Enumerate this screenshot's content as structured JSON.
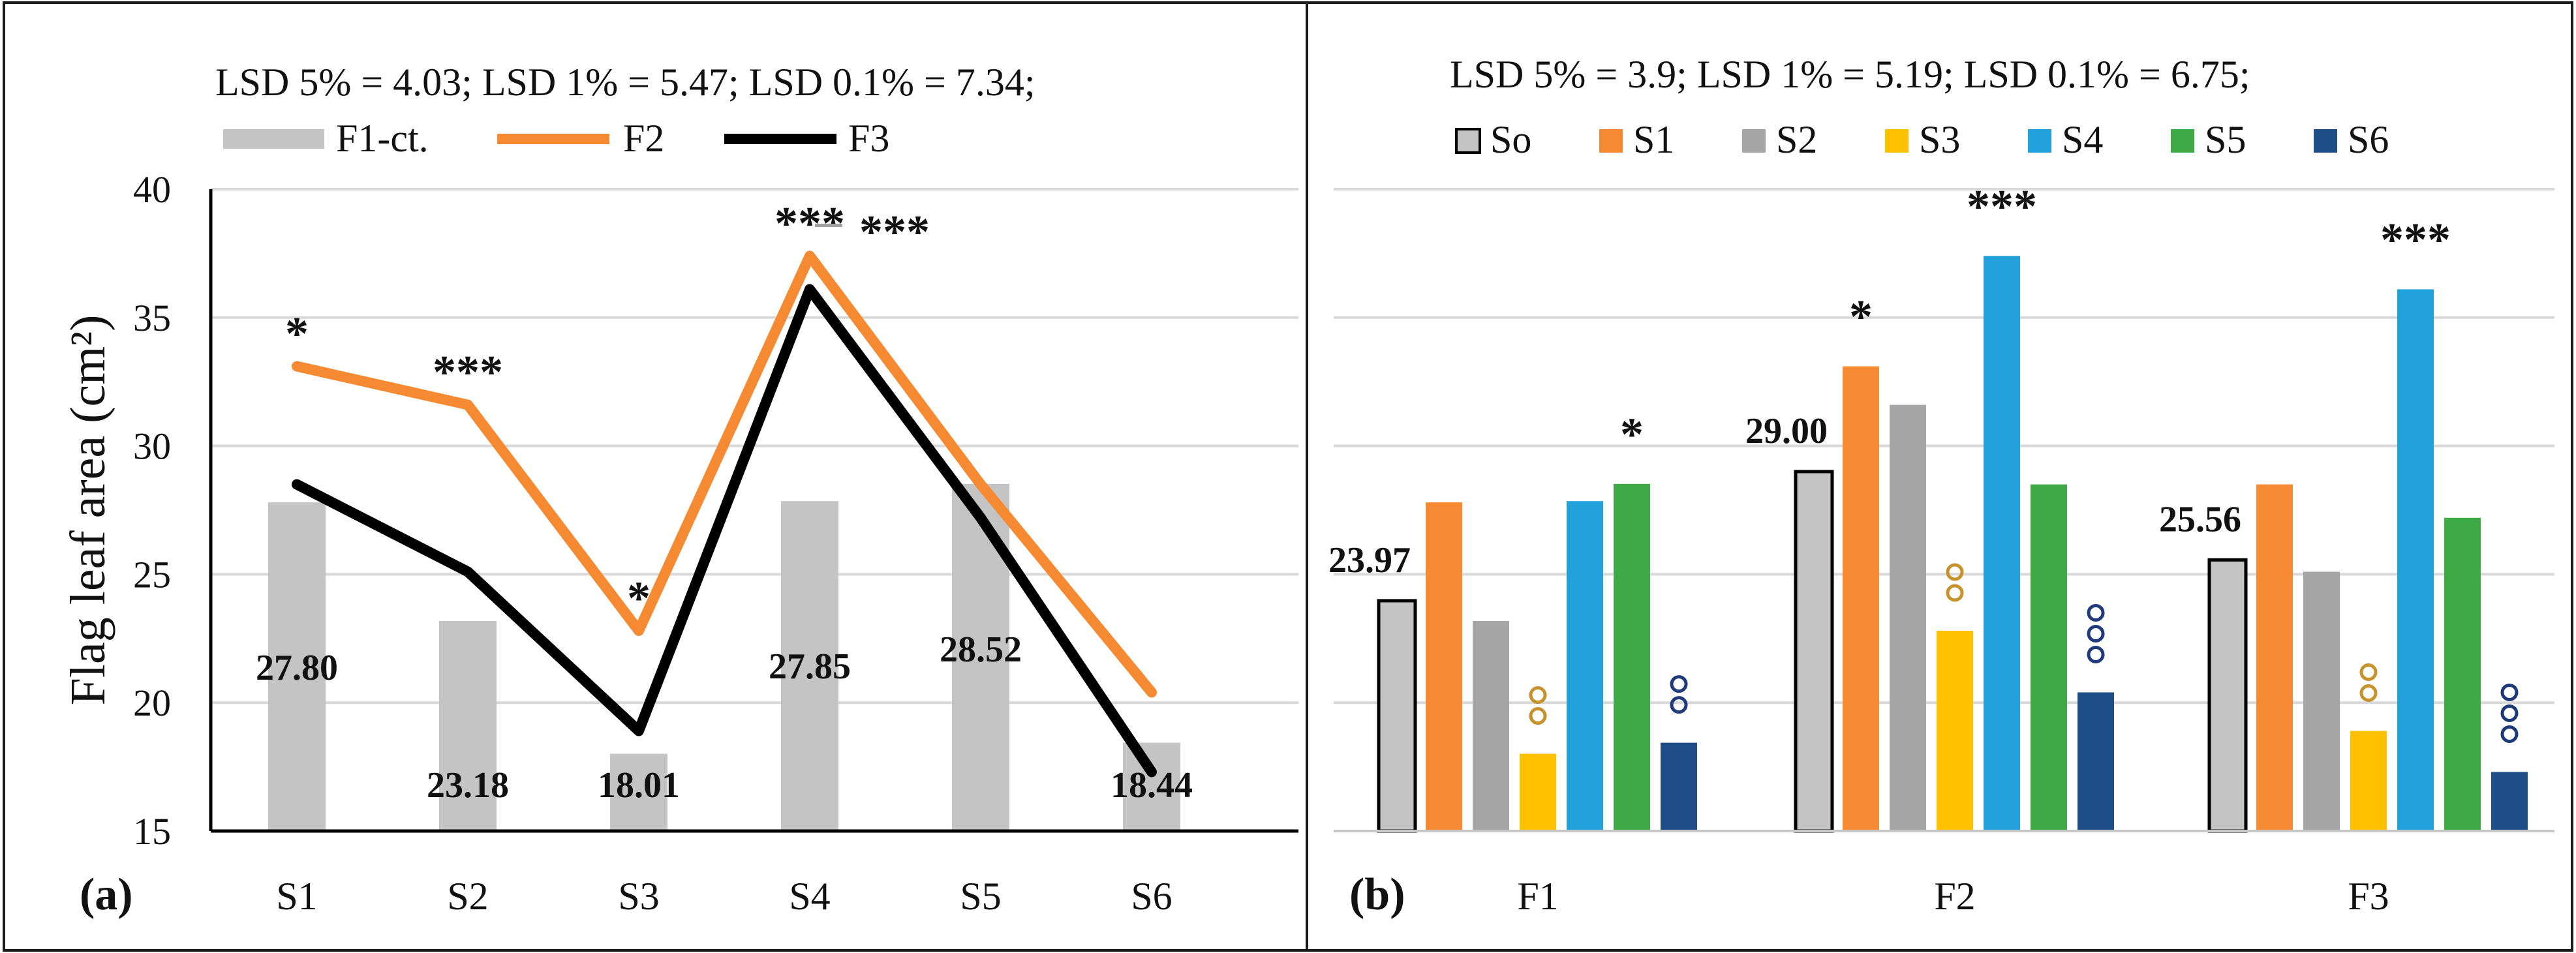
{
  "chart_data": [
    {
      "panel_label": "(a)",
      "type": "bar+line",
      "lsd_text": "LSD 5% = 4.03; LSD 1% = 5.47; LSD 0.1% = 7.34;",
      "ylabel": "Flag leaf area (cm²)",
      "xlabel": "",
      "ylim": [
        15,
        40
      ],
      "yticks": [
        "15",
        "20",
        "25",
        "30",
        "35",
        "40"
      ],
      "categories": [
        "S1",
        "S2",
        "S3",
        "S4",
        "S5",
        "S6"
      ],
      "legend": [
        "F1-ct.",
        "F2",
        "F3"
      ],
      "series": [
        {
          "name": "F1-ct.",
          "kind": "bar",
          "color": "#C4C4C4",
          "values": [
            27.8,
            23.18,
            18.01,
            27.85,
            28.52,
            18.44
          ]
        },
        {
          "name": "F2",
          "kind": "line",
          "color": "#F58A32",
          "values": [
            33.1,
            31.6,
            22.8,
            37.4,
            28.5,
            20.4
          ]
        },
        {
          "name": "F3",
          "kind": "line",
          "color": "#000000",
          "values": [
            28.5,
            25.1,
            18.9,
            36.1,
            27.2,
            17.3
          ]
        }
      ],
      "bar_labels": [
        "27.80",
        "23.18",
        "18.01",
        "27.85",
        "28.52",
        "18.44"
      ],
      "significance": [
        {
          "category": "S1",
          "series": "F2",
          "mark": "*",
          "color": "#F58A32"
        },
        {
          "category": "S2",
          "series": "F2",
          "mark": "***",
          "color": "#F58A32"
        },
        {
          "category": "S3",
          "series": "F2",
          "mark": "*",
          "color": "#F58A32"
        },
        {
          "category": "S4",
          "series": "F2",
          "mark": "***",
          "color": "#F58A32"
        },
        {
          "category": "S4",
          "series": "F3",
          "mark": "***",
          "color": "#000000"
        }
      ]
    },
    {
      "panel_label": "(b)",
      "type": "bar",
      "lsd_text": "LSD 5% = 3.9; LSD 1% = 5.19; LSD 0.1% = 6.75;",
      "ylim": [
        15,
        40
      ],
      "categories": [
        "F1",
        "F2",
        "F3"
      ],
      "legend": [
        "So",
        "S1",
        "S2",
        "S3",
        "S4",
        "S5",
        "S6"
      ],
      "series": [
        {
          "name": "So",
          "color": "#C4C4C4",
          "values": [
            23.97,
            29.0,
            25.56
          ]
        },
        {
          "name": "S1",
          "color": "#F58A32",
          "values": [
            27.8,
            33.1,
            28.5
          ]
        },
        {
          "name": "S2",
          "color": "#A6A6A6",
          "values": [
            23.18,
            31.6,
            25.1
          ]
        },
        {
          "name": "S3",
          "color": "#FFC000",
          "values": [
            18.01,
            22.8,
            18.9
          ]
        },
        {
          "name": "S4",
          "color": "#22A0DA",
          "values": [
            27.85,
            37.4,
            36.1
          ]
        },
        {
          "name": "S5",
          "color": "#3DAA45",
          "values": [
            28.52,
            28.5,
            27.2
          ]
        },
        {
          "name": "S6",
          "color": "#1F4E86",
          "values": [
            18.44,
            20.4,
            17.3
          ]
        }
      ],
      "bar_labels": [
        {
          "category": "F1",
          "text": "23.97"
        },
        {
          "category": "F2",
          "text": "29.00"
        },
        {
          "category": "F3",
          "text": "25.56"
        }
      ],
      "significance": [
        {
          "category": "F1",
          "series": "S5",
          "mark": "*",
          "color": "#3DAA45"
        },
        {
          "category": "F2",
          "series": "S1",
          "mark": "*",
          "color": "#F58A32"
        },
        {
          "category": "F2",
          "series": "S4",
          "mark": "***",
          "color": "#22A0DA"
        },
        {
          "category": "F3",
          "series": "S4",
          "mark": "***",
          "color": "#22A0DA"
        }
      ],
      "decrease_marks": [
        {
          "category": "F1",
          "series": "S3",
          "count": 2,
          "color": "#C8922A"
        },
        {
          "category": "F1",
          "series": "S6",
          "count": 2,
          "color": "#1F3A7A"
        },
        {
          "category": "F2",
          "series": "S3",
          "count": 2,
          "color": "#C8922A"
        },
        {
          "category": "F2",
          "series": "S6",
          "count": 3,
          "color": "#1F3A7A"
        },
        {
          "category": "F3",
          "series": "S3",
          "count": 2,
          "color": "#C8922A"
        },
        {
          "category": "F3",
          "series": "S6",
          "count": 3,
          "color": "#1F3A7A"
        }
      ]
    }
  ]
}
